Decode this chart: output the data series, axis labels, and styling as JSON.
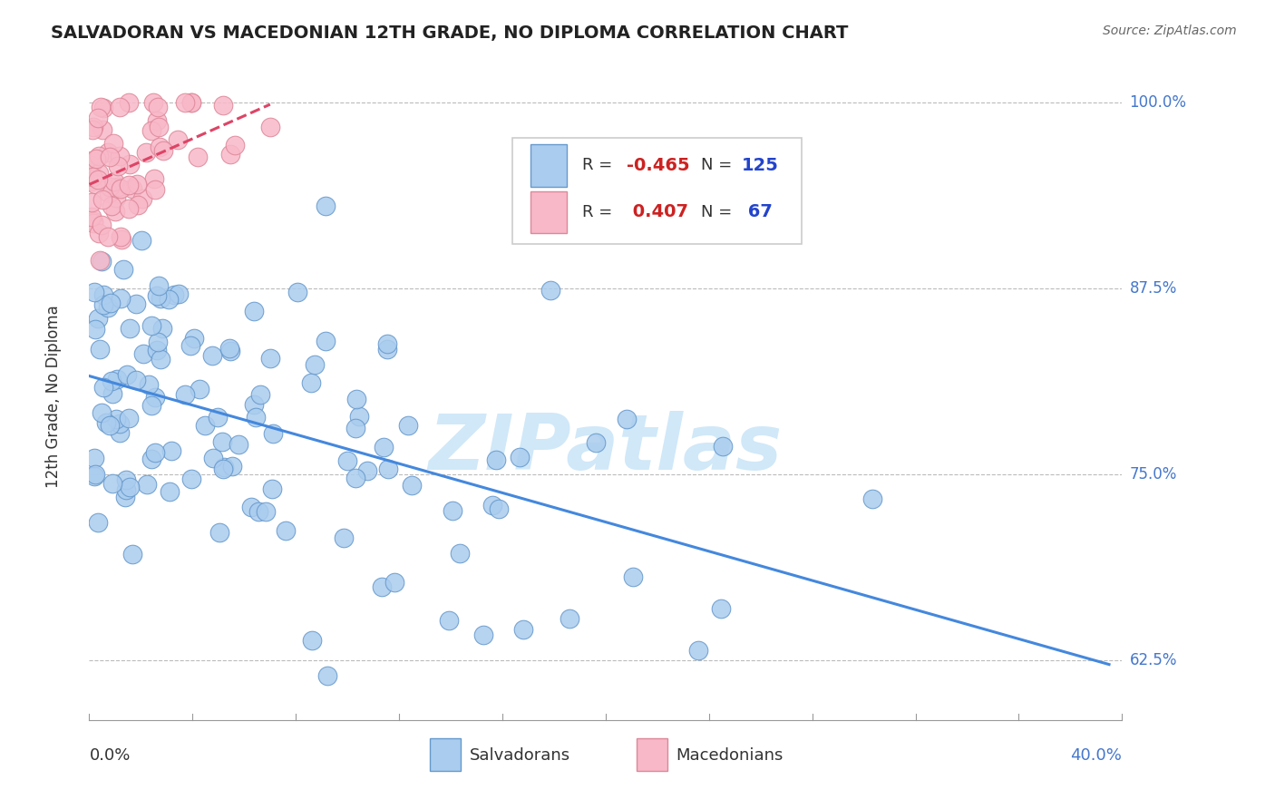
{
  "title": "SALVADORAN VS MACEDONIAN 12TH GRADE, NO DIPLOMA CORRELATION CHART",
  "source_text": "Source: ZipAtlas.com",
  "ylabel_label": "12th Grade, No Diploma",
  "legend_blue_R": "-0.465",
  "legend_blue_N": "125",
  "legend_pink_R": "0.407",
  "legend_pink_N": "67",
  "xlim": [
    0.0,
    0.4
  ],
  "ylim": [
    0.585,
    1.02
  ],
  "gridline_y": [
    1.0,
    0.875,
    0.75,
    0.625
  ],
  "gridline_labels": [
    "100.0%",
    "87.5%",
    "75.0%",
    "62.5%"
  ],
  "blue_color": "#aaccee",
  "blue_edge": "#6699cc",
  "pink_color": "#f8b8c8",
  "pink_edge": "#dd8899",
  "blue_line_color": "#4488dd",
  "pink_line_color": "#dd4466",
  "watermark_color": "#d0e8f8",
  "background_color": "#ffffff",
  "title_color": "#222222",
  "source_color": "#666666",
  "label_color": "#333333",
  "right_label_color": "#4477cc",
  "legend_R_color": "#cc2222",
  "legend_N_color": "#2244cc",
  "seed_blue": 42,
  "seed_pink": 99
}
